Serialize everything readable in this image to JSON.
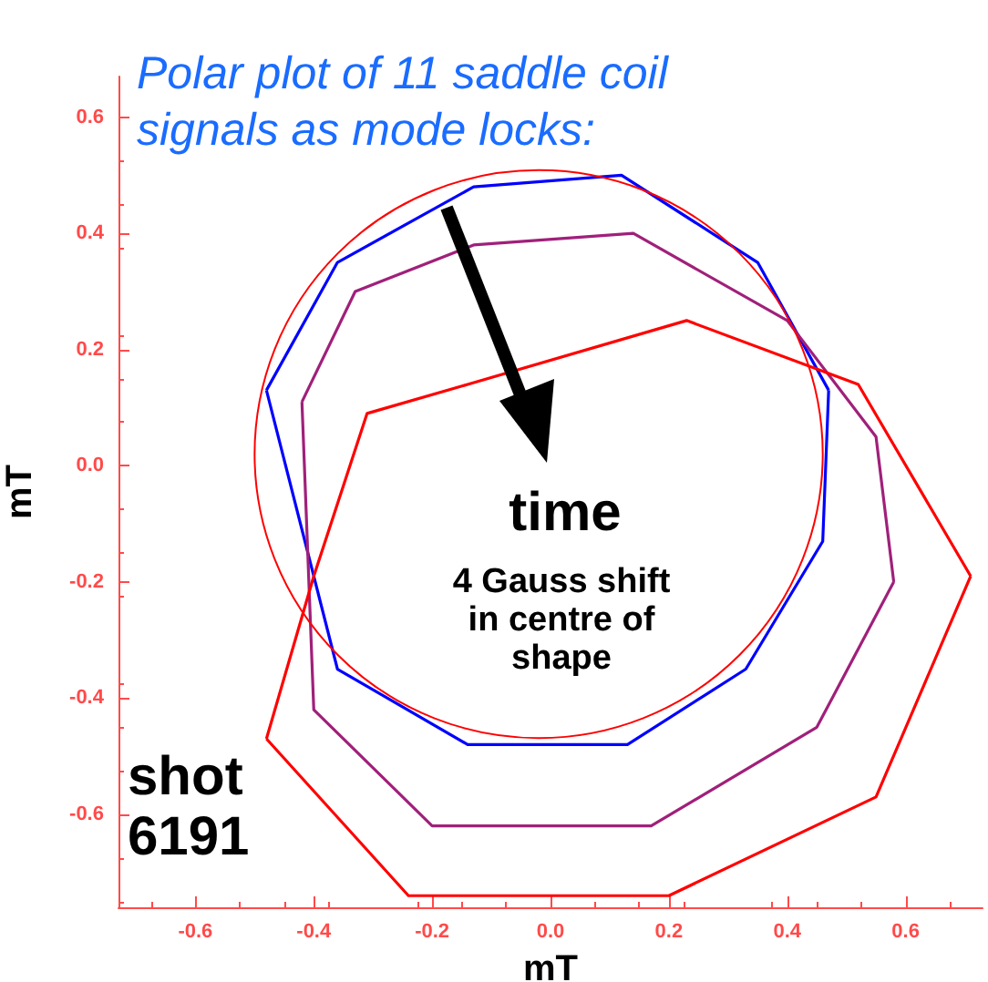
{
  "chart_data": {
    "type": "line",
    "title": "Polar plot of 11 saddle coil signals as mode locks:",
    "xlabel": "mT",
    "ylabel": "mT",
    "xlim": [
      -0.73,
      0.73
    ],
    "ylim": [
      -0.76,
      0.67
    ],
    "xticks": [
      -0.6,
      -0.4,
      -0.2,
      {
        "value": 0,
        "label": "0.0"
      },
      0.2,
      0.4,
      0.6
    ],
    "yticks": [
      -0.6,
      -0.4,
      -0.2,
      {
        "value": 0,
        "label": "0.0"
      },
      0.2,
      0.4,
      0.6
    ],
    "grid": false,
    "marker": "none",
    "line_style": "solid",
    "series": [
      {
        "color": "#0000ff",
        "x": [
          -0.48,
          -0.36,
          -0.13,
          0.12,
          0.35,
          0.47
        ],
        "values": [
          0.13,
          0.35,
          0.48,
          0.5,
          0.35,
          0.13
        ]
      },
      {
        "color": "#0000ff",
        "x": [
          -0.48,
          -0.36,
          -0.14,
          0.13,
          0.33,
          0.46,
          0.47
        ],
        "values": [
          0.13,
          -0.35,
          -0.48,
          -0.48,
          -0.35,
          -0.13,
          0.13
        ]
      },
      {
        "color": "#a0207a",
        "x": [
          -0.42,
          -0.33,
          -0.13,
          0.14,
          0.4,
          0.55,
          0.58
        ],
        "values": [
          0.11,
          0.3,
          0.38,
          0.4,
          0.25,
          0.05,
          -0.2
        ]
      },
      {
        "color": "#a0207a",
        "x": [
          -0.42,
          -0.4,
          -0.2,
          0.17,
          0.45,
          0.58
        ],
        "values": [
          0.11,
          -0.42,
          -0.62,
          -0.62,
          -0.45,
          -0.2
        ]
      },
      {
        "color": "#ff0000",
        "x": [
          -0.48,
          -0.4,
          -0.31,
          -0.14,
          0.23,
          0.52,
          0.71
        ],
        "values": [
          -0.47,
          -0.19,
          0.09,
          0.14,
          0.25,
          0.14,
          -0.19
        ]
      },
      {
        "color": "#ff0000",
        "x": [
          -0.48,
          -0.24,
          0.2,
          0.55,
          0.71
        ],
        "values": [
          -0.47,
          -0.74,
          -0.74,
          -0.57,
          -0.19
        ]
      }
    ],
    "annotations": [
      "time",
      "4 Gauss shift\nin centre of\nshape",
      "shot\n6191"
    ]
  }
}
